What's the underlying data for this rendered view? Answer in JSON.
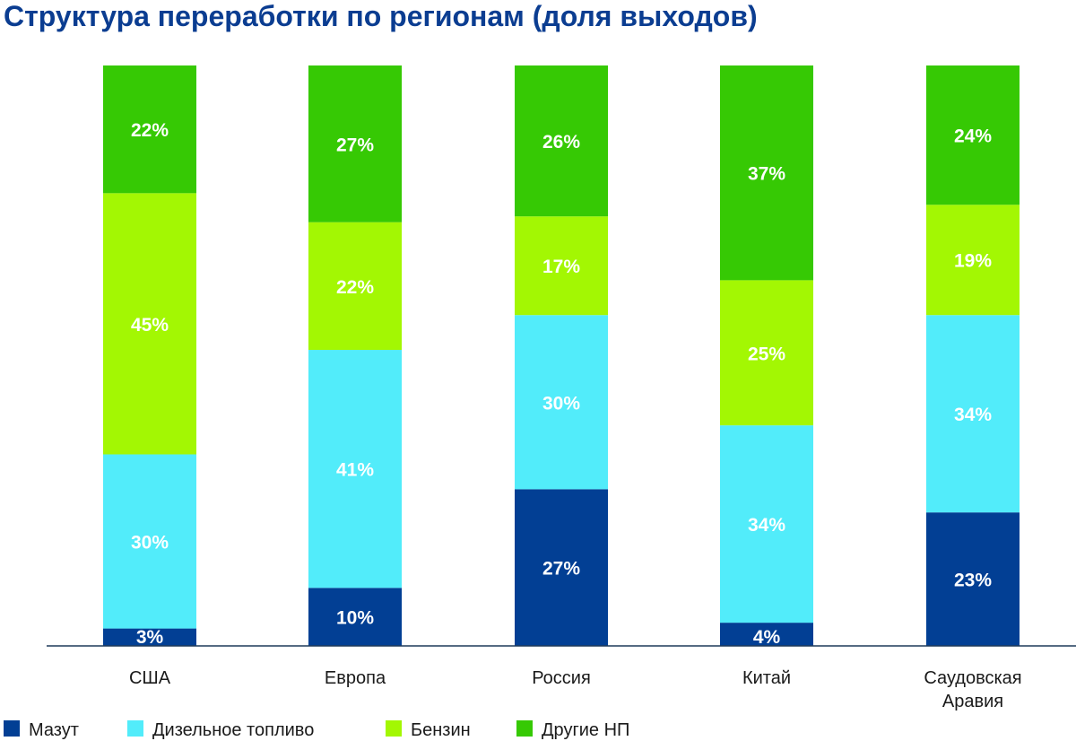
{
  "chart_data": {
    "type": "bar",
    "stacked": true,
    "title": "Структура переработки по регионам (доля выходов)",
    "categories": [
      "США",
      "Европа",
      "Россия",
      "Китай",
      "Саудовская Аравия"
    ],
    "series": [
      {
        "name": "Мазут",
        "color": "#023f94",
        "values": [
          3,
          10,
          27,
          4,
          23
        ]
      },
      {
        "name": "Дизельное топливо",
        "color": "#52ecfa",
        "values": [
          30,
          41,
          30,
          34,
          34
        ]
      },
      {
        "name": "Бензин",
        "color": "#a3f703",
        "values": [
          45,
          22,
          17,
          25,
          19
        ]
      },
      {
        "name": "Другие НП",
        "color": "#36c904",
        "values": [
          22,
          27,
          26,
          37,
          24
        ]
      }
    ],
    "labels": [
      [
        "3%",
        "10%",
        "27%",
        "4%",
        "23%"
      ],
      [
        "30%",
        "41%",
        "30%",
        "34%",
        "34%"
      ],
      [
        "45%",
        "22%",
        "17%",
        "25%",
        "19%"
      ],
      [
        "22%",
        "27%",
        "26%",
        "37%",
        "24%"
      ]
    ],
    "category_lines": [
      [
        "США"
      ],
      [
        "Европа"
      ],
      [
        "Россия"
      ],
      [
        "Китай"
      ],
      [
        "Саудовская",
        "Аравия"
      ]
    ],
    "ylim": [
      0,
      100
    ],
    "legend_position": "bottom-left",
    "title_color": "#0b3d91"
  }
}
